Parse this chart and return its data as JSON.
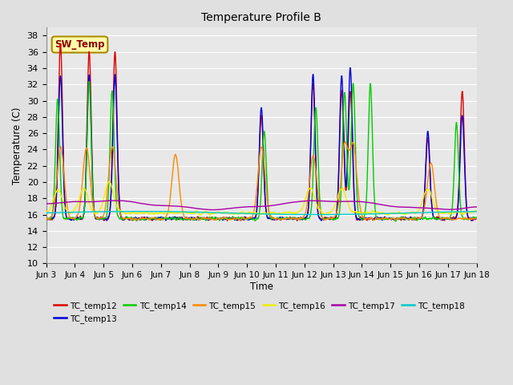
{
  "title": "Temperature Profile B",
  "xlabel": "Time",
  "ylabel": "Temperature (C)",
  "ylim": [
    10,
    39
  ],
  "xlim_days": [
    0,
    15
  ],
  "background_color": "#e0e0e0",
  "plot_bg_color": "#e8e8e8",
  "grid_color": "#ffffff",
  "xtick_labels": [
    "Jun 3",
    "Jun 4",
    "Jun 5",
    "Jun 6",
    "Jun 7",
    "Jun 8",
    "Jun 9",
    "Jun 10",
    "Jun 11",
    "Jun 12",
    "Jun 13",
    "Jun 14",
    "Jun 15",
    "Jun 16",
    "Jun 17",
    "Jun 18"
  ],
  "series_colors": {
    "SW_Temp": "#dd0000",
    "TC_temp12": "#dd0000",
    "TC_temp13": "#0000dd",
    "TC_temp14": "#00cc00",
    "TC_temp15": "#ff8800",
    "TC_temp16": "#eeee00",
    "TC_temp17": "#aa00aa",
    "TC_temp18": "#00cccc"
  },
  "legend_labels": [
    "TC_temp12",
    "TC_temp13",
    "TC_temp14",
    "TC_temp15",
    "TC_temp16",
    "TC_temp17",
    "TC_temp18"
  ],
  "legend_colors": [
    "#dd0000",
    "#0000dd",
    "#00cc00",
    "#ff8800",
    "#eeee00",
    "#aa00aa",
    "#00cccc"
  ],
  "sw_temp_annotation": "SW_Temp",
  "sw_temp_box_color": "#ffffaa",
  "sw_temp_box_edge": "#aa8800"
}
